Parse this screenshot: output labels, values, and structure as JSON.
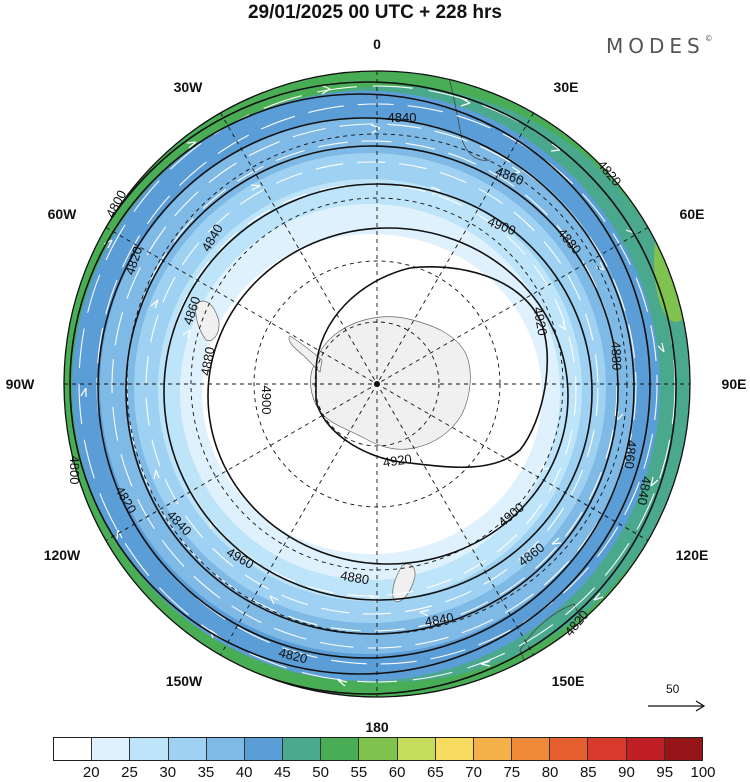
{
  "title": "29/01/2025  00 UTC  + 228 hrs",
  "brand": "MODES",
  "brand_mark": "©",
  "map": {
    "projection": "south polar stereographic",
    "longitude_labels": [
      {
        "name": "0",
        "lon": 0
      },
      {
        "name": "30E",
        "lon": 30
      },
      {
        "name": "60E",
        "lon": 60
      },
      {
        "name": "90E",
        "lon": 90
      },
      {
        "name": "120E",
        "lon": 120
      },
      {
        "name": "150E",
        "lon": 150
      },
      {
        "name": "180",
        "lon": 180
      },
      {
        "name": "150W",
        "lon": -150
      },
      {
        "name": "120W",
        "lon": -120
      },
      {
        "name": "90W",
        "lon": -90
      },
      {
        "name": "60W",
        "lon": -60
      },
      {
        "name": "30W",
        "lon": -30
      }
    ],
    "contour_labels": [
      "4920",
      "4920",
      "4900",
      "4900",
      "4900",
      "4880",
      "4880",
      "4880",
      "4880",
      "4860",
      "4860",
      "4860",
      "4860",
      "4840",
      "4840",
      "4840",
      "4840",
      "4840",
      "4820",
      "4820",
      "4820",
      "4820",
      "4820",
      "4800",
      "4800",
      "4960"
    ],
    "land_color": "#f0f0f0",
    "reference_vector": "50"
  },
  "colorbar": {
    "levels": [
      "20",
      "25",
      "30",
      "35",
      "40",
      "45",
      "50",
      "55",
      "60",
      "65",
      "70",
      "75",
      "80",
      "85",
      "90",
      "95",
      "100"
    ],
    "colors": [
      "#ffffff",
      "#dff1fc",
      "#bde4f8",
      "#9fd2f2",
      "#7fb9e6",
      "#5b9dd6",
      "#4aa88c",
      "#49ad55",
      "#7fc24d",
      "#c6dc5b",
      "#f7dc5f",
      "#f4b049",
      "#ee8a39",
      "#e6602f",
      "#d83a2b",
      "#bf1f25",
      "#951518"
    ]
  }
}
